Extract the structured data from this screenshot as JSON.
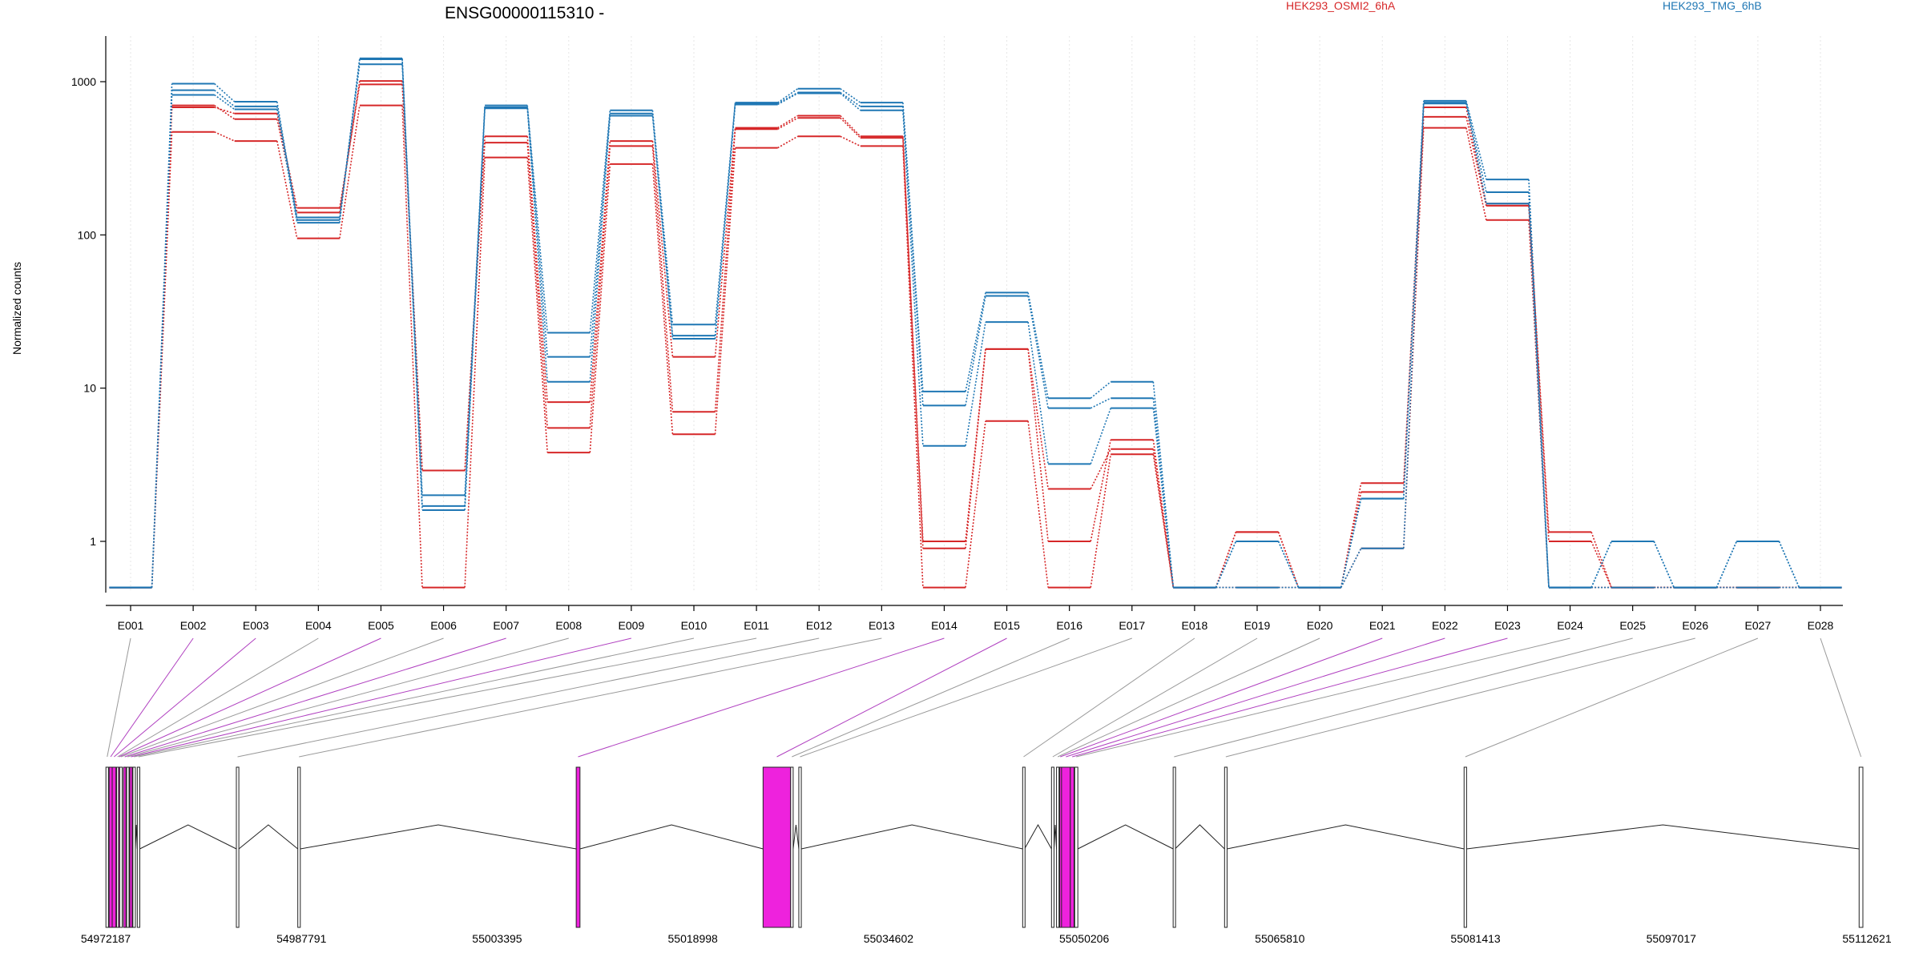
{
  "chart_data": {
    "type": "line",
    "title": "ENSG00000115310 -",
    "ylabel": "Normalized counts",
    "xlabel": "",
    "yscale": "log",
    "yticks": [
      1,
      10,
      100,
      1000
    ],
    "ytick_labels": [
      "1",
      "10",
      "100",
      "1000"
    ],
    "ylim": [
      0.5,
      2000
    ],
    "grid": "vertical dotted lines at exon centers",
    "legend": [
      {
        "name": "HEK293_OSMI2_6hA",
        "color": "#d62728",
        "position": "top-right"
      },
      {
        "name": "HEK293_TMG_6hB",
        "color": "#1f77b4",
        "position": "top-right"
      }
    ],
    "categories": [
      "E001",
      "E002",
      "E003",
      "E004",
      "E005",
      "E006",
      "E007",
      "E008",
      "E009",
      "E010",
      "E011",
      "E012",
      "E013",
      "E014",
      "E015",
      "E016",
      "E017",
      "E018",
      "E019",
      "E020",
      "E021",
      "E022",
      "E023",
      "E024",
      "E025",
      "E026",
      "E027",
      "E028"
    ],
    "series": [
      {
        "group": "HEK293_OSMI2_6hA",
        "color": "#d62728",
        "values": [
          0.5,
          700,
          570,
          140,
          1010,
          2.9,
          440,
          8.1,
          410,
          16,
          500,
          600,
          440,
          1.0,
          18,
          1.0,
          4.6,
          0.5,
          1.15,
          0.5,
          2.4,
          680,
          160,
          1.15,
          0.5,
          0.5,
          0.5,
          0.5
        ]
      },
      {
        "group": "HEK293_OSMI2_6hA",
        "color": "#d62728",
        "values": [
          0.5,
          680,
          620,
          150,
          960,
          2.9,
          400,
          5.5,
          380,
          7,
          490,
          580,
          430,
          0.9,
          18,
          2.2,
          4.0,
          0.5,
          1.15,
          0.5,
          2.1,
          590,
          155,
          1.0,
          0.5,
          0.5,
          0.5,
          0.5
        ]
      },
      {
        "group": "HEK293_OSMI2_6hA",
        "color": "#d62728",
        "values": [
          0.5,
          470,
          410,
          95,
          700,
          0.5,
          320,
          3.8,
          290,
          5,
          370,
          440,
          380,
          0.5,
          6.1,
          0.5,
          3.7,
          0.5,
          0.5,
          0.5,
          0.9,
          500,
          125,
          0.5,
          0.5,
          0.5,
          0.5,
          0.5
        ]
      },
      {
        "group": "HEK293_TMG_6hB",
        "color": "#1f77b4",
        "values": [
          0.5,
          970,
          740,
          125,
          1400,
          2.0,
          700,
          23,
          650,
          26,
          730,
          900,
          730,
          9.5,
          42,
          8.6,
          11,
          0.5,
          0.5,
          0.5,
          1.9,
          750,
          230,
          0.5,
          0.5,
          0.5,
          0.5,
          0.5
        ]
      },
      {
        "group": "HEK293_TMG_6hB",
        "color": "#1f77b4",
        "values": [
          0.5,
          880,
          690,
          130,
          1300,
          1.7,
          680,
          16,
          620,
          22,
          720,
          850,
          690,
          7.7,
          40,
          7.4,
          8.6,
          0.5,
          1.0,
          0.5,
          1.9,
          730,
          190,
          0.5,
          1.0,
          0.5,
          1.0,
          0.5
        ]
      },
      {
        "group": "HEK293_TMG_6hB",
        "color": "#1f77b4",
        "values": [
          0.5,
          820,
          660,
          120,
          1420,
          1.6,
          670,
          11,
          600,
          21,
          710,
          840,
          650,
          4.2,
          27,
          3.2,
          7.4,
          0.5,
          1.0,
          0.5,
          0.9,
          720,
          160,
          0.5,
          1.0,
          0.5,
          1.0,
          0.5
        ]
      }
    ],
    "gene_model": {
      "coordinate_labels": [
        "54972187",
        "54987791",
        "55003395",
        "55018998",
        "55034602",
        "55050206",
        "55065810",
        "55081413",
        "55097017",
        "55112621"
      ],
      "xlim": [
        54972187,
        55112621
      ],
      "highlight_color": "#ee22dd",
      "exons": [
        {
          "id": "E001",
          "start": 54972200,
          "end": 54972400,
          "highlighted": false
        },
        {
          "id": "E002",
          "start": 54972450,
          "end": 54972700,
          "highlighted": true
        },
        {
          "id": "E003",
          "start": 54972700,
          "end": 54973000,
          "highlighted": true
        },
        {
          "id": "E004",
          "start": 54973050,
          "end": 54973200,
          "highlighted": false
        },
        {
          "id": "E005",
          "start": 54973200,
          "end": 54973300,
          "highlighted": true
        },
        {
          "id": "E006",
          "start": 54973300,
          "end": 54973500,
          "highlighted": false
        },
        {
          "id": "E007",
          "start": 54973600,
          "end": 54973800,
          "highlighted": true
        },
        {
          "id": "E008",
          "start": 54973850,
          "end": 54974000,
          "highlighted": false
        },
        {
          "id": "E009",
          "start": 54974100,
          "end": 54974300,
          "highlighted": true
        },
        {
          "id": "E010",
          "start": 54974350,
          "end": 54974550,
          "highlighted": false
        },
        {
          "id": "E011",
          "start": 54974700,
          "end": 54974900,
          "highlighted": false
        },
        {
          "id": "E012",
          "start": 54982600,
          "end": 54982800,
          "highlighted": false
        },
        {
          "id": "E013",
          "start": 54987500,
          "end": 54987700,
          "highlighted": false
        },
        {
          "id": "E014",
          "start": 55009700,
          "end": 55010000,
          "highlighted": true
        },
        {
          "id": "E015",
          "start": 55024600,
          "end": 55026800,
          "highlighted": true
        },
        {
          "id": "E016",
          "start": 55026800,
          "end": 55027000,
          "highlighted": false
        },
        {
          "id": "E017",
          "start": 55027450,
          "end": 55027650,
          "highlighted": false
        },
        {
          "id": "E018",
          "start": 55045300,
          "end": 55045450,
          "highlighted": false
        },
        {
          "id": "E019",
          "start": 55047600,
          "end": 55047800,
          "highlighted": false
        },
        {
          "id": "E020",
          "start": 55048000,
          "end": 55048200,
          "highlighted": false
        },
        {
          "id": "E021",
          "start": 55048250,
          "end": 55048350,
          "highlighted": true
        },
        {
          "id": "E022",
          "start": 55048400,
          "end": 55049100,
          "highlighted": true
        },
        {
          "id": "E023",
          "start": 55049100,
          "end": 55049400,
          "highlighted": true
        },
        {
          "id": "E024",
          "start": 55049450,
          "end": 55049700,
          "highlighted": false
        },
        {
          "id": "E025",
          "start": 55057300,
          "end": 55057450,
          "highlighted": false
        },
        {
          "id": "E026",
          "start": 55061400,
          "end": 55061600,
          "highlighted": false
        },
        {
          "id": "E027",
          "start": 55080500,
          "end": 55080700,
          "highlighted": false
        },
        {
          "id": "E028",
          "start": 55112000,
          "end": 55112300,
          "highlighted": false
        }
      ]
    }
  }
}
